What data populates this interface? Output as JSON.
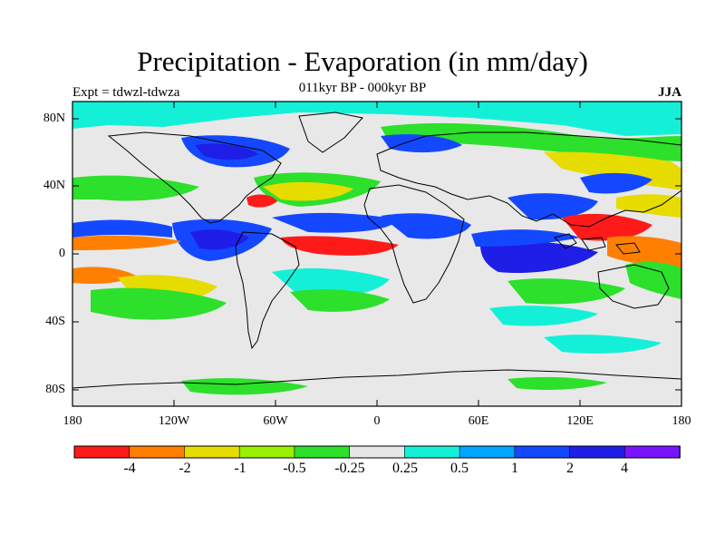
{
  "figure": {
    "title": "Precipitation - Evaporation (in mm/day)",
    "subtitle": "011kyr BP - 000kyr BP",
    "left_label": "Expt = tdwzl-tdwza",
    "right_label": "JJA"
  },
  "map": {
    "projection": "cylindrical equidistant",
    "missing_color": "#e8e8e8",
    "coastline_color": "#000000",
    "lat_ticks": [
      "80N",
      "40N",
      "0",
      "40S",
      "80S"
    ],
    "lon_ticks": [
      "180",
      "120W",
      "60W",
      "0",
      "60E",
      "120E",
      "180"
    ]
  },
  "colorbar": {
    "colors": [
      "#ff1a1a",
      "#ff8000",
      "#e6dc00",
      "#99f000",
      "#2ce02c",
      "#e6e6e6",
      "#14f0d8",
      "#00a6ff",
      "#1448ff",
      "#1e1ee6",
      "#7a14ff"
    ],
    "labels": [
      "-4",
      "-2",
      "-1",
      "-0.5",
      "-0.25",
      "0.25",
      "0.5",
      "1",
      "2",
      "4"
    ]
  }
}
